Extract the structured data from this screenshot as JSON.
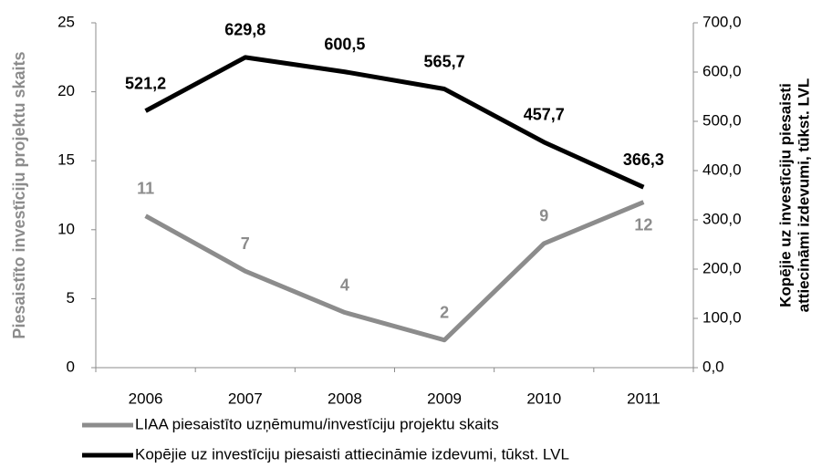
{
  "chart_data": {
    "type": "line",
    "categories": [
      "2006",
      "2007",
      "2008",
      "2009",
      "2010",
      "2011"
    ],
    "series": [
      {
        "name": "LIAA piesaistīto uzņēmumu/investīciju projektu skaits",
        "color": "#8c8c8c",
        "values": [
          11,
          7,
          4,
          2,
          9,
          12
        ]
      },
      {
        "name": "Kopējie uz investīciju piesaisti attiecināmie izdevumi, tūkst. LVL",
        "color": "#000000",
        "axis": "y2",
        "values": [
          521.2,
          629.8,
          600.5,
          565.7,
          457.7,
          366.3
        ],
        "value_labels": [
          "521,2",
          "629,8",
          "600,5",
          "565,7",
          "457,7",
          "366,3"
        ]
      }
    ],
    "ylabel": "Piesaistīto investīciju projektu skaits",
    "y2label": [
      "Kopējie uz investīciju piesaisti",
      "attiecināmi izdevumi, tūkst. LVL"
    ],
    "ylim": [
      0,
      25
    ],
    "yticks": [
      0,
      5,
      10,
      15,
      20,
      25
    ],
    "y2lim": [
      0,
      700
    ],
    "y2ticks": [
      {
        "value": 0,
        "label": "0,0"
      },
      {
        "value": 100,
        "label": "100,0"
      },
      {
        "value": 200,
        "label": "200,0"
      },
      {
        "value": 300,
        "label": "300,0"
      },
      {
        "value": 400,
        "label": "400,0"
      },
      {
        "value": 500,
        "label": "500,0"
      },
      {
        "value": 600,
        "label": "600,0"
      },
      {
        "value": 700,
        "label": "700,0"
      }
    ],
    "grid": false,
    "legend": "bottom"
  }
}
